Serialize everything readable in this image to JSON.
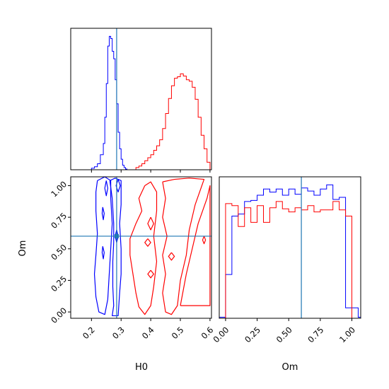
{
  "colors": {
    "series_a": "#0000ff",
    "series_b": "#ff0000",
    "truth": "#1f77b4"
  },
  "chart_data": {
    "type": "corner",
    "parameters": [
      "H0",
      "Om"
    ],
    "truth": {
      "H0": 0.285,
      "Om": 0.6
    },
    "axes": {
      "H0": {
        "label": "H0",
        "lim": [
          0.13,
          0.605
        ],
        "ticks": [
          0.2,
          0.3,
          0.4,
          0.5,
          0.6
        ],
        "tick_labels": [
          "0.2",
          "0.3",
          "0.4",
          "0.5",
          "0.6"
        ]
      },
      "Om": {
        "label": "Om",
        "lim": [
          -0.05,
          1.07
        ],
        "ticks": [
          0.0,
          0.25,
          0.5,
          0.75,
          1.0
        ],
        "tick_labels": [
          "0.00",
          "0.25",
          "0.50",
          "0.75",
          "1.00"
        ]
      }
    },
    "panels": [
      {
        "position": "top-left",
        "type": "histogram",
        "parameter": "H0",
        "series": [
          {
            "color_key": "series_a",
            "bin_edges": [
              0.2,
              0.21,
              0.22,
              0.23,
              0.24,
              0.245,
              0.25,
              0.255,
              0.26,
              0.265,
              0.27,
              0.275,
              0.28,
              0.285,
              0.29,
              0.295,
              0.3,
              0.305,
              0.31,
              0.315,
              0.32
            ],
            "counts": [
              2,
              4,
              8,
              20,
              35,
              70,
              115,
              165,
              178,
              175,
              158,
              148,
              120,
              88,
              50,
              28,
              14,
              6,
              3,
              1
            ]
          },
          {
            "color_key": "series_b",
            "bin_edges": [
              0.35,
              0.36,
              0.37,
              0.38,
              0.39,
              0.4,
              0.41,
              0.42,
              0.43,
              0.44,
              0.45,
              0.46,
              0.47,
              0.48,
              0.49,
              0.5,
              0.51,
              0.52,
              0.53,
              0.54,
              0.55,
              0.56,
              0.57,
              0.58,
              0.59,
              0.6
            ],
            "counts": [
              3,
              5,
              8,
              12,
              16,
              20,
              26,
              32,
              40,
              55,
              75,
              95,
              112,
              122,
              124,
              128,
              125,
              120,
              118,
              110,
              94,
              70,
              46,
              28,
              10
            ]
          }
        ]
      },
      {
        "position": "bottom-left",
        "type": "contour",
        "x": "H0",
        "y": "Om",
        "series": [
          {
            "color_key": "series_a",
            "contours": [
              [
                [
                  0.22,
                  1.04
                ],
                [
                  0.215,
                  0.95
                ],
                [
                  0.215,
                  0.8
                ],
                [
                  0.22,
                  0.62
                ],
                [
                  0.215,
                  0.45
                ],
                [
                  0.21,
                  0.3
                ],
                [
                  0.215,
                  0.12
                ],
                [
                  0.225,
                  0.0
                ],
                [
                  0.245,
                  -0.02
                ],
                [
                  0.255,
                  0.1
                ],
                [
                  0.26,
                  0.3
                ],
                [
                  0.265,
                  0.5
                ],
                [
                  0.27,
                  0.7
                ],
                [
                  0.265,
                  0.9
                ],
                [
                  0.265,
                  1.04
                ],
                [
                  0.245,
                  1.07
                ],
                [
                  0.22,
                  1.04
                ]
              ],
              [
                [
                  0.262,
                  1.04
                ],
                [
                  0.27,
                  0.9
                ],
                [
                  0.275,
                  0.7
                ],
                [
                  0.275,
                  0.55
                ],
                [
                  0.272,
                  0.4
                ],
                [
                  0.272,
                  0.2
                ],
                [
                  0.275,
                  0.05
                ],
                [
                  0.27,
                  -0.03
                ],
                [
                  0.29,
                  -0.03
                ],
                [
                  0.295,
                  0.15
                ],
                [
                  0.3,
                  0.3
                ],
                [
                  0.3,
                  0.5
                ],
                [
                  0.295,
                  0.7
                ],
                [
                  0.3,
                  0.85
                ],
                [
                  0.3,
                  1.04
                ],
                [
                  0.28,
                  1.06
                ],
                [
                  0.262,
                  1.04
                ]
              ],
              [
                [
                  0.238,
                  0.83
                ],
                [
                  0.243,
                  0.78
                ],
                [
                  0.24,
                  0.73
                ],
                [
                  0.236,
                  0.78
                ],
                [
                  0.238,
                  0.83
                ]
              ],
              [
                [
                  0.238,
                  0.52
                ],
                [
                  0.243,
                  0.47
                ],
                [
                  0.24,
                  0.42
                ],
                [
                  0.236,
                  0.47
                ],
                [
                  0.238,
                  0.52
                ]
              ],
              [
                [
                  0.25,
                  1.04
                ],
                [
                  0.255,
                  0.98
                ],
                [
                  0.25,
                  0.92
                ],
                [
                  0.245,
                  0.98
                ],
                [
                  0.25,
                  1.04
                ]
              ],
              [
                [
                  0.285,
                  0.65
                ],
                [
                  0.29,
                  0.6
                ],
                [
                  0.285,
                  0.55
                ],
                [
                  0.28,
                  0.6
                ],
                [
                  0.285,
                  0.65
                ]
              ],
              [
                [
                  0.29,
                  1.05
                ],
                [
                  0.297,
                  1.0
                ],
                [
                  0.29,
                  0.95
                ],
                [
                  0.283,
                  1.0
                ],
                [
                  0.29,
                  1.05
                ]
              ]
            ]
          },
          {
            "color_key": "series_b",
            "contours": [
              [
                [
                  0.38,
                  1.0
                ],
                [
                  0.36,
                  0.9
                ],
                [
                  0.37,
                  0.8
                ],
                [
                  0.35,
                  0.7
                ],
                [
                  0.33,
                  0.58
                ],
                [
                  0.33,
                  0.45
                ],
                [
                  0.34,
                  0.3
                ],
                [
                  0.35,
                  0.15
                ],
                [
                  0.36,
                  0.04
                ],
                [
                  0.38,
                  -0.02
                ],
                [
                  0.4,
                  0.05
                ],
                [
                  0.41,
                  0.2
                ],
                [
                  0.42,
                  0.4
                ],
                [
                  0.41,
                  0.6
                ],
                [
                  0.42,
                  0.8
                ],
                [
                  0.42,
                  0.95
                ],
                [
                  0.4,
                  1.03
                ],
                [
                  0.38,
                  1.0
                ]
              ],
              [
                [
                  0.44,
                  1.03
                ],
                [
                  0.45,
                  0.9
                ],
                [
                  0.44,
                  0.75
                ],
                [
                  0.455,
                  0.6
                ],
                [
                  0.44,
                  0.45
                ],
                [
                  0.45,
                  0.3
                ],
                [
                  0.44,
                  0.15
                ],
                [
                  0.45,
                  0.0
                ],
                [
                  0.47,
                  -0.02
                ],
                [
                  0.49,
                  0.05
                ],
                [
                  0.5,
                  0.25
                ],
                [
                  0.52,
                  0.45
                ],
                [
                  0.53,
                  0.65
                ],
                [
                  0.55,
                  0.85
                ],
                [
                  0.58,
                  1.05
                ],
                [
                  0.53,
                  1.06
                ],
                [
                  0.48,
                  1.05
                ],
                [
                  0.44,
                  1.03
                ]
              ],
              [
                [
                  0.5,
                  0.05
                ],
                [
                  0.52,
                  0.3
                ],
                [
                  0.54,
                  0.5
                ],
                [
                  0.56,
                  0.7
                ],
                [
                  0.59,
                  0.9
                ],
                [
                  0.6,
                  1.0
                ],
                [
                  0.6,
                  0.05
                ],
                [
                  0.5,
                  0.05
                ]
              ],
              [
                [
                  0.4,
                  0.75
                ],
                [
                  0.41,
                  0.7
                ],
                [
                  0.4,
                  0.65
                ],
                [
                  0.39,
                  0.7
                ],
                [
                  0.4,
                  0.75
                ]
              ],
              [
                [
                  0.39,
                  0.58
                ],
                [
                  0.4,
                  0.55
                ],
                [
                  0.39,
                  0.52
                ],
                [
                  0.38,
                  0.55
                ],
                [
                  0.39,
                  0.58
                ]
              ],
              [
                [
                  0.4,
                  0.33
                ],
                [
                  0.41,
                  0.3
                ],
                [
                  0.4,
                  0.27
                ],
                [
                  0.39,
                  0.3
                ],
                [
                  0.4,
                  0.33
                ]
              ],
              [
                [
                  0.47,
                  0.47
                ],
                [
                  0.48,
                  0.44
                ],
                [
                  0.47,
                  0.41
                ],
                [
                  0.46,
                  0.44
                ],
                [
                  0.47,
                  0.47
                ]
              ],
              [
                [
                  0.58,
                  0.6
                ],
                [
                  0.585,
                  0.57
                ],
                [
                  0.58,
                  0.54
                ],
                [
                  0.575,
                  0.57
                ],
                [
                  0.58,
                  0.6
                ]
              ]
            ]
          }
        ]
      },
      {
        "position": "bottom-right",
        "type": "histogram",
        "parameter": "Om",
        "series": [
          {
            "color_key": "series_a",
            "bin_edges": [
              -0.05,
              0.0,
              0.05,
              0.1,
              0.15,
              0.2,
              0.25,
              0.3,
              0.35,
              0.4,
              0.45,
              0.5,
              0.55,
              0.6,
              0.65,
              0.7,
              0.75,
              0.8,
              0.85,
              0.9,
              0.95,
              1.0,
              1.05,
              1.07
            ],
            "counts": [
              1,
              42,
              98,
              100,
              112,
              113,
              118,
              124,
              121,
              124,
              118,
              124,
              119,
              125,
              122,
              118,
              124,
              128,
              114,
              116,
              10,
              10,
              1
            ]
          },
          {
            "color_key": "series_b",
            "bin_edges": [
              0.0,
              0.05,
              0.1,
              0.15,
              0.2,
              0.25,
              0.3,
              0.35,
              0.4,
              0.45,
              0.5,
              0.55,
              0.6,
              0.65,
              0.7,
              0.75,
              0.8,
              0.85,
              0.9,
              0.95,
              1.0
            ],
            "counts": [
              110,
              108,
              88,
              106,
              92,
              108,
              92,
              106,
              112,
              105,
              102,
              106,
              104,
              108,
              102,
              104,
              104,
              112,
              104,
              98
            ]
          }
        ]
      }
    ]
  }
}
